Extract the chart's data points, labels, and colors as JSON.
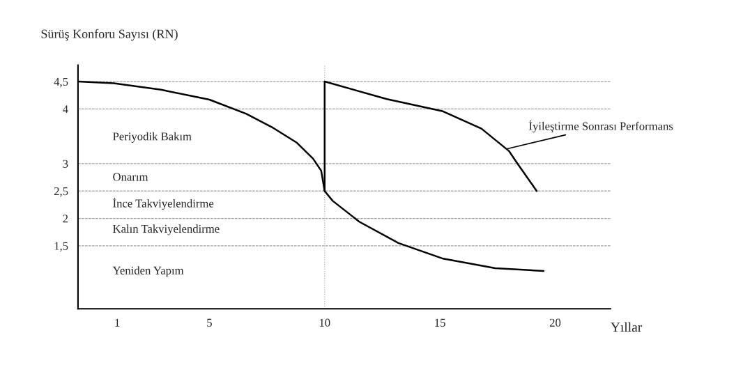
{
  "chart_data": {
    "type": "line",
    "ylabel": "Sürüş Konforu Sayısı (RN)",
    "xlabel": "Yıllar",
    "series": [
      {
        "color": "#000000",
        "x": [
          -0.7,
          0.85,
          2.9,
          5,
          6.6,
          7.7,
          8.8,
          9.5,
          9.85,
          10,
          10.35,
          11.5,
          13.2,
          15.1,
          17.4,
          19.5
        ],
        "values": [
          4.5,
          4.47,
          4.35,
          4.17,
          3.91,
          3.67,
          3.38,
          3.09,
          2.87,
          2.5,
          2.32,
          1.94,
          1.55,
          1.27,
          1.09,
          1.04
        ]
      },
      {
        "color": "#000000",
        "x": [
          10,
          10,
          12.7,
          15.1,
          16.8,
          18.0,
          18.3,
          19.2
        ],
        "values": [
          2.5,
          4.5,
          4.18,
          3.96,
          3.64,
          3.23,
          3.04,
          2.5
        ]
      }
    ],
    "xlim": [
      -0.7,
      22.4
    ],
    "ylim": [
      0.35,
      4.8
    ],
    "xticks": [
      1,
      5,
      10,
      15,
      20
    ],
    "yticks": [
      {
        "value": 1.5,
        "label": "1,5"
      },
      2,
      {
        "value": 2.5,
        "label": "2,5"
      },
      3,
      4,
      {
        "value": 4.5,
        "label": "4,5"
      }
    ],
    "grid": "y",
    "marker": "none",
    "line_style": "solid",
    "ref_lines": [
      {
        "axis": "x",
        "value": 10,
        "color": "#b0b0b0",
        "line_style": "dotted"
      }
    ],
    "annotations": [
      "Periyodik Bakım",
      "Onarım",
      "İnce Takviyelendirme",
      "Kalın Takviyelendirme",
      "Yeniden Yapım",
      {
        "text": "İyileştirme Sonrası Performans",
        "x": 17.9,
        "y": 3.27
      }
    ]
  }
}
